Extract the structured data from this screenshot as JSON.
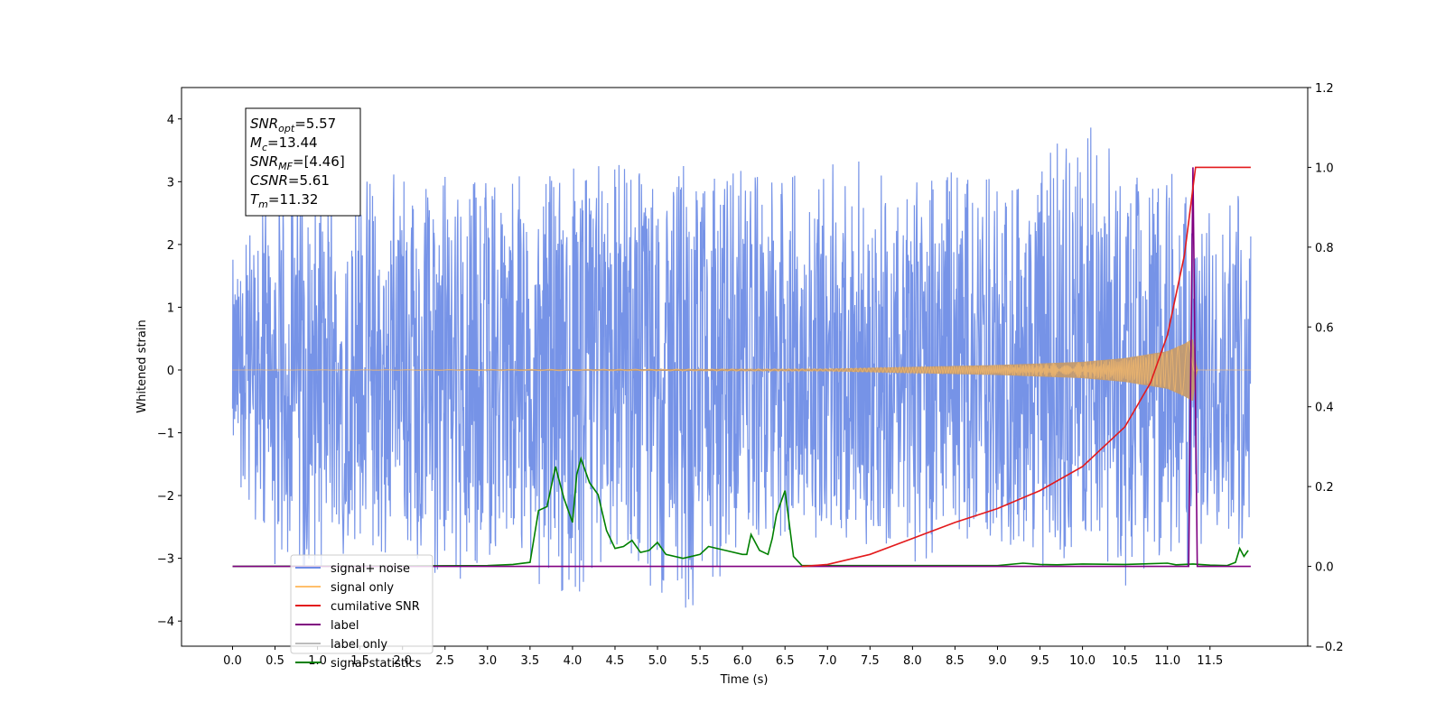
{
  "chart_data": {
    "type": "line",
    "xlabel": "Time (s)",
    "ylabel_left": "Whitened strain",
    "ylabel_right": "",
    "xlim": [
      -0.6,
      12.65
    ],
    "ylim_left": [
      -4.4,
      4.5
    ],
    "ylim_right": [
      -0.2,
      1.2
    ],
    "x_ticks": [
      0.0,
      0.5,
      1.0,
      1.5,
      2.0,
      2.5,
      3.0,
      3.5,
      4.0,
      4.5,
      5.0,
      5.5,
      6.0,
      6.5,
      7.0,
      7.5,
      8.0,
      8.5,
      9.0,
      9.5,
      10.0,
      10.5,
      11.0,
      11.5
    ],
    "x_tick_labels": [
      "0.0",
      "0.5",
      "1.0",
      "1.5",
      "2.0",
      "2.5",
      "3.0",
      "3.5",
      "4.0",
      "4.5",
      "5.0",
      "5.5",
      "6.0",
      "6.5",
      "7.0",
      "7.5",
      "8.0",
      "8.5",
      "9.0",
      "9.5",
      "10.0",
      "10.5",
      "11.0",
      "11.5"
    ],
    "y_left_ticks": [
      -4,
      -3,
      -2,
      -1,
      0,
      1,
      2,
      3,
      4
    ],
    "y_left_tick_labels": [
      "−4",
      "−3",
      "−2",
      "−1",
      "0",
      "1",
      "2",
      "3",
      "4"
    ],
    "y_right_ticks": [
      -0.2,
      0.0,
      0.2,
      0.4,
      0.6,
      0.8,
      1.0,
      1.2
    ],
    "y_right_tick_labels": [
      "−0.2",
      "0.0",
      "0.2",
      "0.4",
      "0.6",
      "0.8",
      "1.0",
      "1.2"
    ],
    "grid": false,
    "legend_position": "lower-left",
    "series": [
      {
        "name": "signal+ noise",
        "axis": "left",
        "color": "#6f8de6",
        "x": [
          0.0,
          0.5,
          1.0,
          1.5,
          2.0,
          2.5,
          3.0,
          3.5,
          4.0,
          4.5,
          5.0,
          5.5,
          6.0,
          6.5,
          7.0,
          7.5,
          8.0,
          8.5,
          9.0,
          9.5,
          10.0,
          10.5,
          11.0,
          11.3,
          11.5,
          11.98
        ],
        "y_max": [
          1.9,
          3.1,
          3.3,
          3.0,
          3.2,
          3.3,
          3.1,
          3.2,
          3.5,
          3.3,
          3.2,
          3.4,
          3.2,
          3.1,
          3.3,
          3.4,
          3.0,
          3.2,
          3.1,
          3.3,
          4.1,
          3.3,
          3.1,
          3.3,
          2.8,
          2.8
        ],
        "y_min": [
          -2.1,
          -3.1,
          -3.2,
          -2.9,
          -3.0,
          -3.5,
          -3.2,
          -3.3,
          -3.9,
          -2.8,
          -3.8,
          -3.9,
          -2.8,
          -2.9,
          -2.7,
          -2.8,
          -3.2,
          -2.9,
          -2.7,
          -3.2,
          -2.9,
          -3.5,
          -2.9,
          -3.3,
          -2.9,
          -2.9
        ]
      },
      {
        "name": "signal only",
        "axis": "left",
        "color": "#ffbf6b",
        "x": [
          0.0,
          7.0,
          8.0,
          9.0,
          10.0,
          10.5,
          11.0,
          11.2,
          11.3,
          11.35,
          11.98
        ],
        "amplitude": [
          0.0,
          0.02,
          0.05,
          0.08,
          0.13,
          0.19,
          0.3,
          0.42,
          0.5,
          0.0,
          0.0
        ]
      },
      {
        "name": "cumilative SNR",
        "axis": "right",
        "color": "#e31a1c",
        "x": [
          6.7,
          7.0,
          7.5,
          8.0,
          8.5,
          9.0,
          9.5,
          10.0,
          10.5,
          10.8,
          11.0,
          11.2,
          11.33,
          11.98
        ],
        "y": [
          0.0,
          0.005,
          0.03,
          0.07,
          0.11,
          0.145,
          0.19,
          0.25,
          0.35,
          0.46,
          0.58,
          0.78,
          1.0,
          1.0
        ]
      },
      {
        "name": "label",
        "axis": "right",
        "color": "#800080",
        "x": [
          0.0,
          11.25,
          11.3,
          11.35,
          11.98
        ],
        "y": [
          0.0,
          0.0,
          1.0,
          0.0,
          0.0
        ]
      },
      {
        "name": "label only",
        "axis": "left",
        "color": "#bcbcbc",
        "x": [],
        "y": []
      },
      {
        "name": "signal statistics",
        "axis": "right",
        "color": "#008000",
        "x": [
          0.0,
          3.0,
          3.3,
          3.5,
          3.6,
          3.7,
          3.8,
          3.9,
          4.0,
          4.05,
          4.1,
          4.2,
          4.3,
          4.4,
          4.5,
          4.6,
          4.7,
          4.8,
          4.9,
          5.0,
          5.1,
          5.3,
          5.5,
          5.6,
          5.8,
          6.0,
          6.05,
          6.1,
          6.2,
          6.3,
          6.35,
          6.4,
          6.5,
          6.6,
          6.7,
          7.0,
          9.0,
          9.3,
          9.5,
          9.7,
          10.0,
          10.5,
          11.0,
          11.1,
          11.3,
          11.5,
          11.7,
          11.8,
          11.85,
          11.9,
          11.95
        ],
        "y": [
          0.0,
          0.002,
          0.005,
          0.01,
          0.14,
          0.15,
          0.25,
          0.17,
          0.11,
          0.23,
          0.27,
          0.21,
          0.18,
          0.09,
          0.045,
          0.05,
          0.065,
          0.035,
          0.04,
          0.06,
          0.03,
          0.02,
          0.03,
          0.05,
          0.04,
          0.03,
          0.03,
          0.08,
          0.04,
          0.03,
          0.07,
          0.13,
          0.19,
          0.025,
          0.002,
          0.002,
          0.002,
          0.008,
          0.005,
          0.004,
          0.006,
          0.005,
          0.008,
          0.004,
          0.006,
          0.003,
          0.002,
          0.01,
          0.045,
          0.025,
          0.04
        ]
      }
    ],
    "annotation": {
      "lines": [
        {
          "base": "SNR",
          "sub": "opt",
          "value": "=5.57"
        },
        {
          "base": "M",
          "sub": "c",
          "value": "=13.44"
        },
        {
          "base": "SNR",
          "sub": "MF",
          "value": "=[4.46]"
        },
        {
          "base": "CSNR",
          "sub": "",
          "value": "=5.61"
        },
        {
          "base": "T",
          "sub": "m",
          "value": "=11.32"
        }
      ]
    }
  }
}
